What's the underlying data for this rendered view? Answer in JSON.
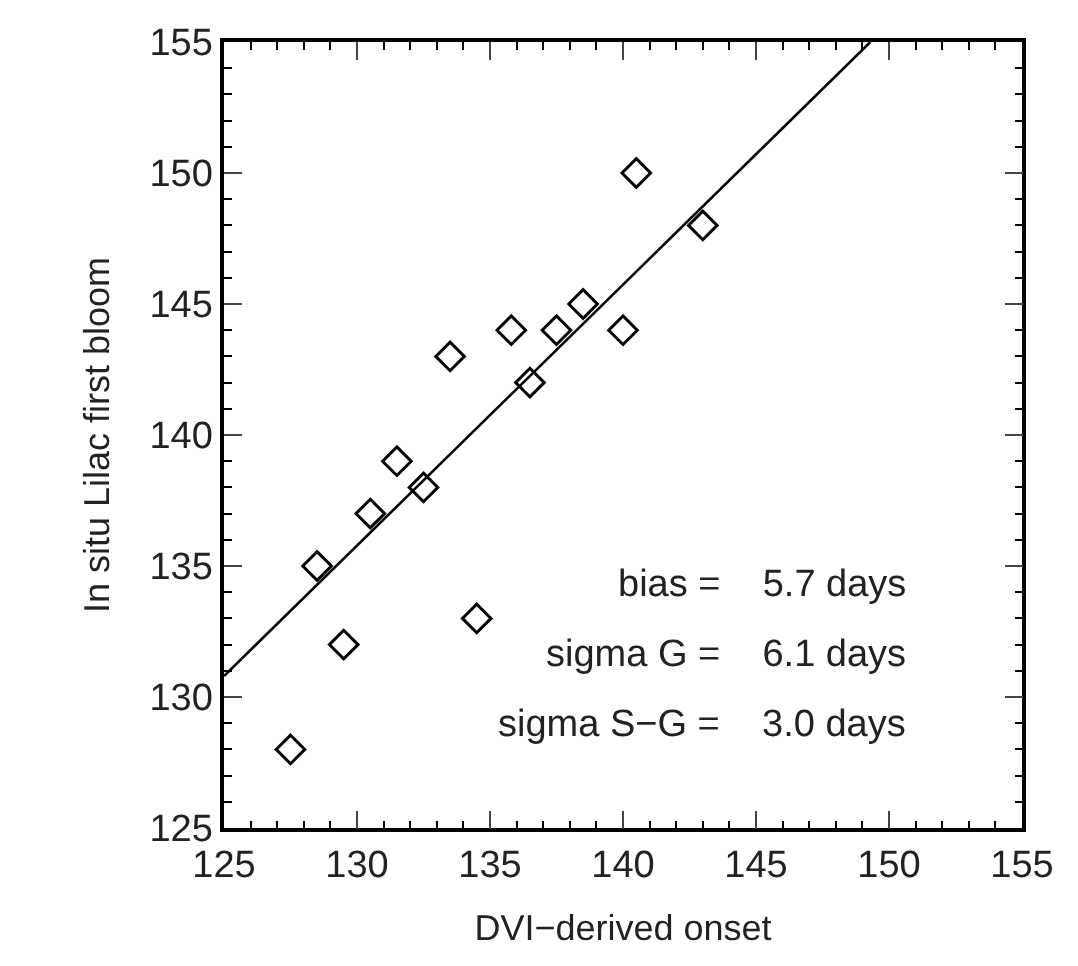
{
  "chart_data": {
    "type": "scatter",
    "xlabel": "DVI−derived onset",
    "ylabel": "In situ Lilac first bloom",
    "x": [
      127.5,
      128.5,
      129.5,
      130.5,
      131.5,
      132.5,
      133.5,
      134.5,
      135.8,
      136.5,
      137.5,
      138.5,
      140,
      140.5,
      143
    ],
    "series": [
      {
        "color": "#000000",
        "marker": "diamond",
        "values": [
          128,
          135,
          132,
          137,
          139,
          138,
          143,
          133,
          144,
          142,
          144,
          145,
          144,
          150,
          148
        ]
      },
      {
        "type": "line",
        "color": "#000000",
        "line_style": "solid",
        "x": [
          125,
          149.3
        ],
        "values": [
          130.8,
          155
        ]
      }
    ],
    "annotations": [
      "bias =    5.7 days",
      "sigma G =    6.1 days",
      "sigma S−G =    3.0 days"
    ],
    "xlim": [
      125,
      155
    ],
    "xticks": [
      125,
      130,
      135,
      140,
      145,
      150,
      155
    ],
    "ylim": [
      125,
      155
    ],
    "yticks": [
      125,
      130,
      135,
      140,
      145,
      150,
      155
    ]
  }
}
